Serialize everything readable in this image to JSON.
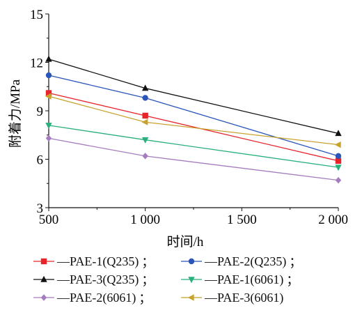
{
  "chart_data": {
    "type": "line",
    "xlabel": "时间/h",
    "ylabel": "附着力/MPa",
    "xlim": [
      500,
      2000
    ],
    "ylim": [
      3,
      15
    ],
    "x_ticks": [
      500,
      1000,
      1500,
      2000
    ],
    "x_tick_labels": [
      "500",
      "1 000",
      "1 500",
      "2 000"
    ],
    "y_ticks": [
      3,
      6,
      9,
      12,
      15
    ],
    "y_tick_labels": [
      "3",
      "6",
      "9",
      "12",
      "15"
    ],
    "grid": false,
    "legend_position": "bottom",
    "legend_separator": "；",
    "x": [
      500,
      1000,
      2000
    ],
    "series": [
      {
        "name": "—PAE-1(Q235)",
        "color": "#e8242b",
        "marker": "square",
        "values": [
          10.1,
          8.7,
          5.9
        ]
      },
      {
        "name": "—PAE-2(Q235)",
        "color": "#2a55b9",
        "marker": "circle",
        "values": [
          11.2,
          9.8,
          6.2
        ]
      },
      {
        "name": "—PAE-3(Q235)",
        "color": "#111111",
        "marker": "triangle-up",
        "values": [
          12.2,
          10.4,
          7.6
        ]
      },
      {
        "name": "—PAE-1(6061)",
        "color": "#27b07b",
        "marker": "triangle-down",
        "values": [
          8.1,
          7.2,
          5.5
        ]
      },
      {
        "name": "—PAE-2(6061)",
        "color": "#a57cbf",
        "marker": "diamond",
        "values": [
          7.3,
          6.2,
          4.7
        ]
      },
      {
        "name": "—PAE-3(6061)",
        "color": "#c8a22c",
        "marker": "triangle-left",
        "values": [
          9.9,
          8.3,
          6.9
        ]
      }
    ]
  }
}
